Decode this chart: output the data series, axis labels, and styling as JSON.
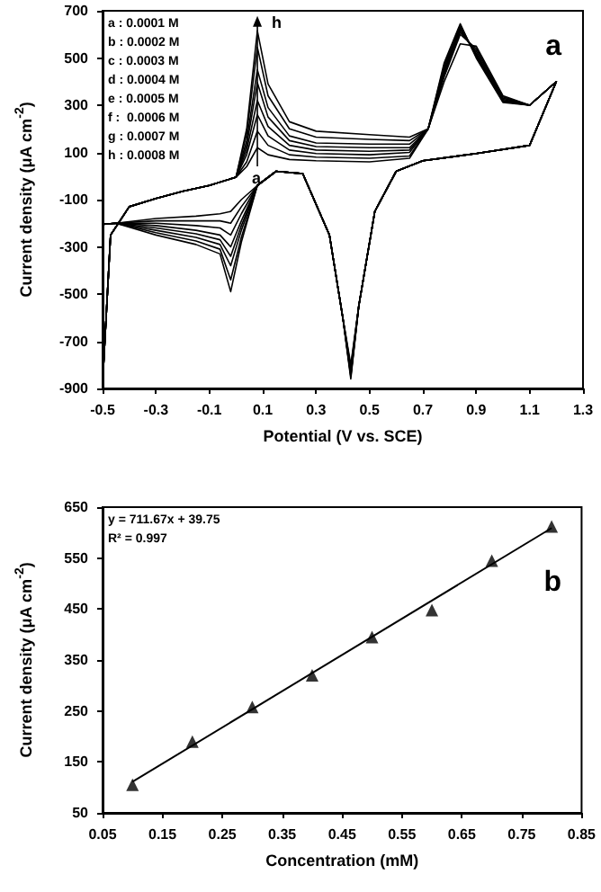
{
  "chart_data": [
    {
      "type": "line",
      "xlabel": "Potential (V vs. SCE)",
      "ylabel": "Current density (μA cm$^{-2}$)",
      "marker": "none",
      "xlim": [
        -0.5,
        1.3
      ],
      "xticks": [
        -0.5,
        -0.3,
        -0.1,
        0.1,
        0.3,
        0.5,
        0.7,
        0.9,
        1.1,
        1.3
      ],
      "ylim": [
        -900,
        700
      ],
      "yticks": [
        -900,
        -700,
        -500,
        -300,
        -100,
        100,
        300,
        500,
        700
      ],
      "grid": false,
      "annotations": [
        "a",
        "a : 0.0001 M",
        "b : 0.0002 M",
        "c : 0.0003 M",
        "d : 0.0004 M",
        "e : 0.0005 M",
        "f :  0.0006 M",
        "g : 0.0007 M",
        "h : 0.0008 M",
        {
          "text": "a",
          "x": 0.08,
          "y": -20
        },
        {
          "text": "h",
          "x": 0.08,
          "y": 640
        }
      ],
      "x": [
        -0.5,
        -0.47,
        -0.4,
        -0.3,
        -0.2,
        -0.1,
        0,
        0.04,
        0.08,
        0.12,
        0.2,
        0.3,
        0.5,
        0.65,
        0.72,
        0.78,
        0.84,
        0.9,
        1.0,
        1.1,
        1.2,
        1.1,
        0.9,
        0.7,
        0.6,
        0.52,
        0.46,
        0.43,
        0.4,
        0.35,
        0.25,
        0.15,
        0.08,
        0.02,
        -0.02,
        -0.06,
        -0.15,
        -0.3,
        -0.45,
        -0.5
      ],
      "series": [
        {
          "color": "#000000",
          "values": [
            -880,
            -250,
            -130,
            -95,
            -65,
            -40,
            -5,
            40,
            120,
            90,
            70,
            65,
            60,
            75,
            200,
            400,
            560,
            550,
            340,
            300,
            400,
            130,
            95,
            65,
            20,
            -150,
            -550,
            -800,
            -600,
            -250,
            10,
            20,
            -40,
            -100,
            -150,
            -160,
            -170,
            -180,
            -200,
            -205
          ]
        },
        {
          "color": "#000000",
          "values": [
            -880,
            -250,
            -130,
            -95,
            -65,
            -40,
            -5,
            60,
            190,
            130,
            90,
            80,
            75,
            85,
            200,
            420,
            600,
            540,
            335,
            300,
            400,
            130,
            95,
            65,
            20,
            -150,
            -550,
            -810,
            -600,
            -250,
            10,
            20,
            -40,
            -130,
            -200,
            -190,
            -190,
            -190,
            -200,
            -205
          ]
        },
        {
          "color": "#000000",
          "values": [
            -880,
            -250,
            -130,
            -95,
            -65,
            -40,
            -5,
            90,
            260,
            170,
            110,
            95,
            90,
            100,
            200,
            430,
            610,
            530,
            330,
            300,
            400,
            130,
            95,
            65,
            20,
            -150,
            -550,
            -820,
            -600,
            -250,
            10,
            20,
            -40,
            -160,
            -250,
            -220,
            -210,
            -200,
            -200,
            -205
          ]
        },
        {
          "color": "#000000",
          "values": [
            -880,
            -250,
            -130,
            -95,
            -65,
            -40,
            -5,
            110,
            320,
            210,
            130,
            110,
            105,
            110,
            200,
            440,
            620,
            520,
            325,
            300,
            400,
            130,
            95,
            65,
            20,
            -150,
            -550,
            -830,
            -600,
            -250,
            10,
            20,
            -40,
            -190,
            -300,
            -250,
            -230,
            -210,
            -200,
            -205
          ]
        },
        {
          "color": "#000000",
          "values": [
            -880,
            -250,
            -130,
            -95,
            -65,
            -40,
            -5,
            130,
            395,
            250,
            150,
            125,
            120,
            120,
            200,
            450,
            625,
            515,
            320,
            300,
            400,
            130,
            95,
            65,
            20,
            -150,
            -550,
            -840,
            -600,
            -250,
            10,
            20,
            -40,
            -210,
            -340,
            -270,
            -245,
            -220,
            -200,
            -205
          ]
        },
        {
          "color": "#000000",
          "values": [
            -880,
            -250,
            -130,
            -95,
            -65,
            -40,
            -5,
            150,
            450,
            290,
            170,
            140,
            135,
            135,
            200,
            460,
            630,
            510,
            318,
            300,
            400,
            130,
            95,
            65,
            20,
            -150,
            -550,
            -845,
            -600,
            -250,
            10,
            20,
            -40,
            -230,
            -380,
            -290,
            -260,
            -230,
            -200,
            -205
          ]
        },
        {
          "color": "#000000",
          "values": [
            -880,
            -250,
            -130,
            -95,
            -65,
            -40,
            -5,
            180,
            545,
            340,
            200,
            165,
            155,
            150,
            200,
            470,
            640,
            505,
            315,
            300,
            400,
            130,
            95,
            65,
            20,
            -150,
            -550,
            -850,
            -600,
            -250,
            10,
            20,
            -40,
            -260,
            -440,
            -310,
            -275,
            -240,
            -200,
            -205
          ]
        },
        {
          "color": "#000000",
          "values": [
            -880,
            -250,
            -130,
            -95,
            -65,
            -40,
            -5,
            200,
            615,
            390,
            230,
            190,
            175,
            165,
            200,
            480,
            645,
            500,
            312,
            300,
            400,
            130,
            95,
            65,
            20,
            -150,
            -550,
            -860,
            -600,
            -250,
            10,
            20,
            -40,
            -280,
            -490,
            -330,
            -290,
            -250,
            -200,
            -205
          ]
        }
      ]
    },
    {
      "type": "scatter",
      "xlabel": "Concentration (mM)",
      "ylabel": "Current density (μA cm$^{-2}$)",
      "xlim": [
        0.05,
        0.85
      ],
      "xticks": [
        0.05,
        0.15,
        0.25,
        0.35,
        0.45,
        0.55,
        0.65,
        0.75,
        0.85
      ],
      "ylim": [
        50,
        650
      ],
      "yticks": [
        50,
        150,
        250,
        350,
        450,
        550,
        650
      ],
      "grid": false,
      "annotations": [
        "b",
        "y = 711.67x + 39.75",
        "R² = 0.997"
      ],
      "x": [
        0.1,
        0.2,
        0.3,
        0.4,
        0.5,
        0.6,
        0.7,
        0.8
      ],
      "series": [
        {
          "color": "#000000",
          "marker": "triangle",
          "values": [
            105,
            190,
            258,
            320,
            395,
            448,
            545,
            612
          ]
        },
        {
          "type": "line",
          "color": "#000000",
          "marker": "none",
          "x": [
            0.1,
            0.8
          ],
          "values": [
            111,
            609
          ]
        }
      ]
    }
  ]
}
